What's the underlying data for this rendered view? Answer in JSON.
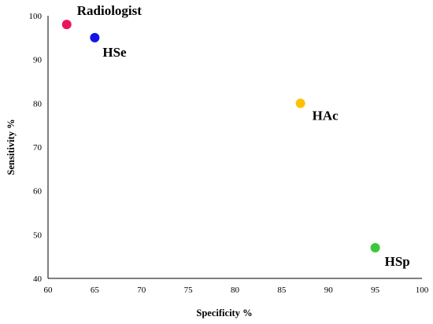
{
  "chart_data": {
    "type": "scatter",
    "title": "",
    "xlabel": "Specificity  %",
    "ylabel": "Sensitivity  %",
    "xlim": [
      60,
      100
    ],
    "ylim": [
      40,
      100
    ],
    "x_ticks": [
      60,
      65,
      70,
      75,
      80,
      85,
      90,
      95,
      100
    ],
    "y_ticks": [
      40,
      50,
      60,
      70,
      80,
      90,
      100
    ],
    "grid": false,
    "legend": "none",
    "points": [
      {
        "label": "Radiologist",
        "x": 62,
        "y": 98,
        "color": "#e8175d"
      },
      {
        "label": "HSe",
        "x": 65,
        "y": 95,
        "color": "#1414e6"
      },
      {
        "label": "HAc",
        "x": 87,
        "y": 80,
        "color": "#ffc000"
      },
      {
        "label": "HSp",
        "x": 95,
        "y": 47,
        "color": "#3cc83c"
      }
    ]
  }
}
